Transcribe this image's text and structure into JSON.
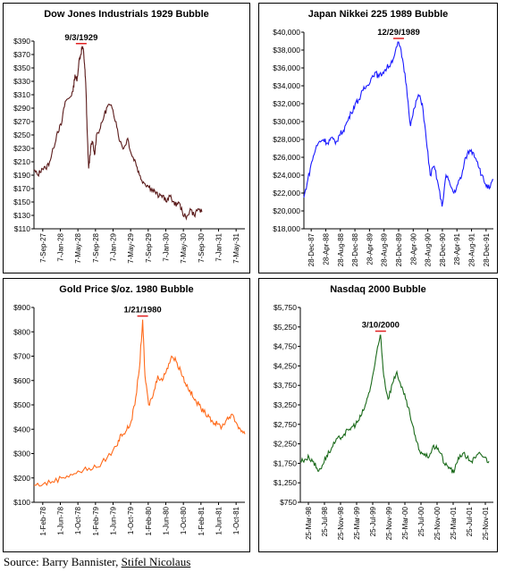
{
  "source": {
    "prefix": "Source: Barry Bannister, ",
    "underlined": "Stifel Nicolaus"
  },
  "chart_data": [
    {
      "type": "line",
      "title": "Dow Jones Industrials 1929 Bubble",
      "color": "#5a1a1a",
      "peak_label": "9/3/1929",
      "peak_color": "#e02020",
      "peak": {
        "x": 12.1,
        "y": 381
      },
      "ylim": [
        110,
        390
      ],
      "yticks": [
        "$110",
        "$130",
        "$150",
        "$170",
        "$190",
        "$210",
        "$230",
        "$250",
        "$270",
        "$290",
        "$310",
        "$330",
        "$350",
        "$370",
        "$390"
      ],
      "xlim": [
        0,
        54
      ],
      "xticks": [
        "7-Sep-27",
        "7-Jan-28",
        "7-May-28",
        "7-Sep-28",
        "7-Jan-29",
        "7-May-29",
        "7-Sep-29",
        "7-Jan-30",
        "7-May-30",
        "7-Sep-30",
        "7-Jan-31",
        "7-May-31"
      ],
      "x": [
        0,
        1,
        2,
        3,
        4,
        5,
        6,
        7,
        8,
        9,
        10,
        10.5,
        11,
        11.5,
        12,
        12.3,
        12.7,
        13,
        13.3,
        13.6,
        14,
        14.5,
        15,
        15.5,
        16,
        17,
        18,
        19,
        20,
        21,
        22,
        23,
        24,
        25,
        26,
        27,
        28,
        29,
        30,
        31,
        32,
        33,
        34,
        35,
        36,
        37,
        38,
        39,
        40,
        41,
        42,
        43
      ],
      "y": [
        197,
        190,
        200,
        200,
        210,
        230,
        255,
        265,
        300,
        305,
        315,
        340,
        330,
        360,
        370,
        381,
        375,
        350,
        320,
        260,
        200,
        230,
        240,
        220,
        250,
        260,
        280,
        295,
        290,
        270,
        240,
        230,
        245,
        220,
        210,
        190,
        180,
        175,
        170,
        165,
        158,
        160,
        150,
        160,
        145,
        150,
        135,
        125,
        140,
        130,
        140,
        135
      ]
    },
    {
      "type": "line",
      "title": "Japan Nikkei 225 1989 Bubble",
      "color": "#1a1aff",
      "peak_label": "12/29/1989",
      "peak_color": "#e02020",
      "peak": {
        "x": 24,
        "y": 38900
      },
      "ylim": [
        18000,
        40000
      ],
      "yticks": [
        "$18,000",
        "$20,000",
        "$22,000",
        "$24,000",
        "$26,000",
        "$28,000",
        "$30,000",
        "$32,000",
        "$34,000",
        "$36,000",
        "$38,000",
        "$40,000"
      ],
      "xlim": [
        0,
        48
      ],
      "xticks": [
        "28-Dec-87",
        "28-Apr-88",
        "28-Aug-88",
        "28-Dec-88",
        "28-Apr-89",
        "28-Aug-89",
        "28-Dec-89",
        "28-Apr-90",
        "28-Aug-90",
        "28-Dec-90",
        "28-Apr-91",
        "28-Aug-91",
        "28-Dec-91"
      ],
      "x": [
        0,
        1,
        2,
        3,
        4,
        5,
        6,
        7,
        8,
        9,
        10,
        11,
        12,
        13,
        14,
        15,
        16,
        17,
        18,
        19,
        20,
        21,
        22,
        23,
        24,
        25,
        26,
        27,
        28,
        29,
        30,
        31,
        32,
        33,
        34,
        35,
        36,
        37,
        38,
        39,
        40,
        41,
        42,
        43,
        44,
        45,
        46,
        47,
        48
      ],
      "y": [
        21500,
        23500,
        25500,
        27000,
        27800,
        28000,
        27600,
        28200,
        27500,
        28500,
        29000,
        30000,
        31000,
        32000,
        32500,
        33500,
        34000,
        34800,
        35500,
        35000,
        35500,
        36000,
        36500,
        37500,
        38900,
        37000,
        34000,
        29500,
        31500,
        33000,
        32000,
        28000,
        24000,
        25000,
        23000,
        20500,
        24000,
        23000,
        22000,
        23000,
        24000,
        26000,
        26800,
        26500,
        25500,
        24000,
        23000,
        22500,
        23500
      ]
    },
    {
      "type": "line",
      "title": "Gold Price $/oz. 1980 Bubble",
      "color": "#ff6a1a",
      "peak_label": "1/21/1980",
      "peak_color": "#e02020",
      "peak": {
        "x": 23.7,
        "y": 850
      },
      "ylim": [
        100,
        900
      ],
      "yticks": [
        "$100",
        "$200",
        "$300",
        "$400",
        "$500",
        "$600",
        "$700",
        "$800",
        "$900"
      ],
      "xlim": [
        0,
        46
      ],
      "xticks": [
        "1-Feb-78",
        "1-Jun-78",
        "1-Oct-78",
        "1-Feb-79",
        "1-Jun-79",
        "1-Oct-79",
        "1-Feb-80",
        "1-Jun-80",
        "1-Oct-80",
        "1-Feb-81",
        "1-Jun-81",
        "1-Oct-81"
      ],
      "x": [
        0,
        2,
        4,
        6,
        8,
        10,
        12,
        14,
        16,
        18,
        19,
        20,
        21,
        22,
        23,
        23.7,
        24.2,
        25,
        26,
        27,
        28,
        29,
        30,
        31,
        32,
        33,
        34,
        35,
        36,
        37,
        38,
        39,
        40,
        41,
        42,
        43,
        44,
        45,
        46
      ],
      "y": [
        170,
        175,
        185,
        200,
        215,
        225,
        240,
        245,
        285,
        330,
        380,
        390,
        420,
        500,
        650,
        850,
        620,
        500,
        540,
        620,
        600,
        650,
        700,
        680,
        640,
        590,
        560,
        520,
        500,
        470,
        460,
        430,
        420,
        410,
        440,
        460,
        430,
        400,
        380
      ]
    },
    {
      "type": "line",
      "title": "Nasdaq 2000 Bubble",
      "color": "#1a6a1a",
      "peak_label": "3/10/2000",
      "peak_color": "#e02020",
      "peak": {
        "x": 18.3,
        "y": 5050
      },
      "ylim": [
        750,
        5750
      ],
      "yticks": [
        "$750",
        "$1,250",
        "$1,750",
        "$2,250",
        "$2,750",
        "$3,250",
        "$3,750",
        "$4,250",
        "$4,750",
        "$5,250",
        "$5,750"
      ],
      "xlim": [
        0,
        44
      ],
      "xticks": [
        "25-Mar-98",
        "25-Jul-98",
        "25-Nov-98",
        "25-Mar-99",
        "25-Jul-99",
        "25-Nov-99",
        "25-Mar-00",
        "25-Jul-00",
        "25-Nov-00",
        "25-Mar-01",
        "25-Jul-01",
        "25-Nov-01"
      ],
      "x": [
        0,
        1,
        2,
        3,
        4,
        5,
        6,
        7,
        8,
        9,
        10,
        11,
        12,
        13,
        14,
        15,
        16,
        17,
        18,
        18.3,
        19,
        20,
        21,
        22,
        23,
        24,
        25,
        26,
        27,
        28,
        29,
        30,
        31,
        32,
        33,
        34,
        35,
        36,
        37,
        38,
        39,
        40,
        41,
        42,
        43
      ],
      "y": [
        1800,
        1850,
        1900,
        1800,
        1550,
        1700,
        1950,
        2100,
        2300,
        2400,
        2500,
        2600,
        2700,
        2800,
        3000,
        3300,
        3700,
        4300,
        4900,
        5050,
        4000,
        3400,
        3800,
        4100,
        3700,
        3400,
        3000,
        2500,
        2100,
        2000,
        1900,
        2100,
        2200,
        2000,
        1700,
        1650,
        1500,
        1900,
        2000,
        1900,
        1800,
        1900,
        2000,
        1900,
        1800
      ]
    }
  ]
}
